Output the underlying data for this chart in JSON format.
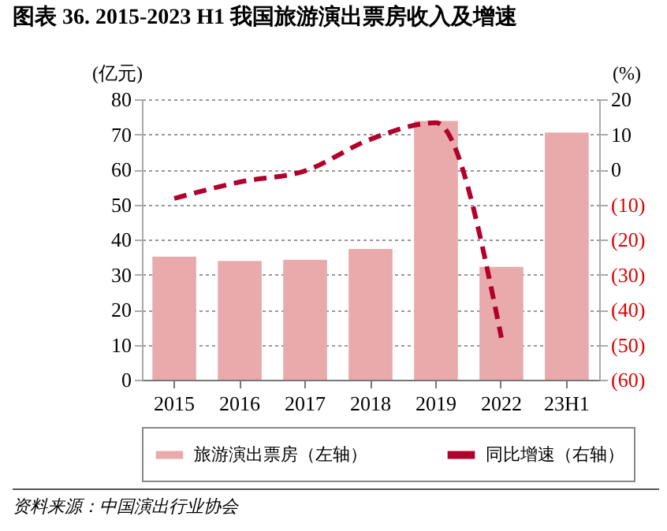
{
  "chart_data": {
    "type": "bar",
    "title": "图表 36. 2015-2023 H1 我国旅游演出票房收入及增速",
    "ylabel": "(亿元)",
    "y2label": "(%)",
    "annotations": [
      "资料来源：中国演出行业协会"
    ],
    "categories": [
      "2015",
      "2016",
      "2017",
      "2018",
      "2019",
      "2022",
      "23H1"
    ],
    "series": [
      {
        "name": "旅游演出票房（左轴）",
        "color": "#e8aaaa",
        "values": [
          35.1,
          33.9,
          34.2,
          37.3,
          73.8,
          32.2,
          70.5
        ]
      },
      {
        "name": "同比增速（右轴）",
        "type": "line",
        "axis": "y2",
        "color": "#b2002c",
        "line_style": "dashed",
        "values": [
          -8.3,
          -3.6,
          -0.4,
          8.6,
          13.3,
          -48,
          null
        ]
      }
    ],
    "ylim": [
      0,
      80
    ],
    "yticks": [
      0,
      10,
      20,
      30,
      40,
      50,
      60,
      70,
      80
    ],
    "y2lim": [
      -60,
      20
    ],
    "y2ticks": [
      {
        "value": -60,
        "label": "(60)"
      },
      {
        "value": -50,
        "label": "(50)"
      },
      {
        "value": -40,
        "label": "(40)"
      },
      {
        "value": -30,
        "label": "(30)"
      },
      {
        "value": -20,
        "label": "(20)"
      },
      {
        "value": -10,
        "label": "(10)"
      },
      0,
      10,
      20
    ],
    "grid": "y",
    "legend": "bottom"
  }
}
